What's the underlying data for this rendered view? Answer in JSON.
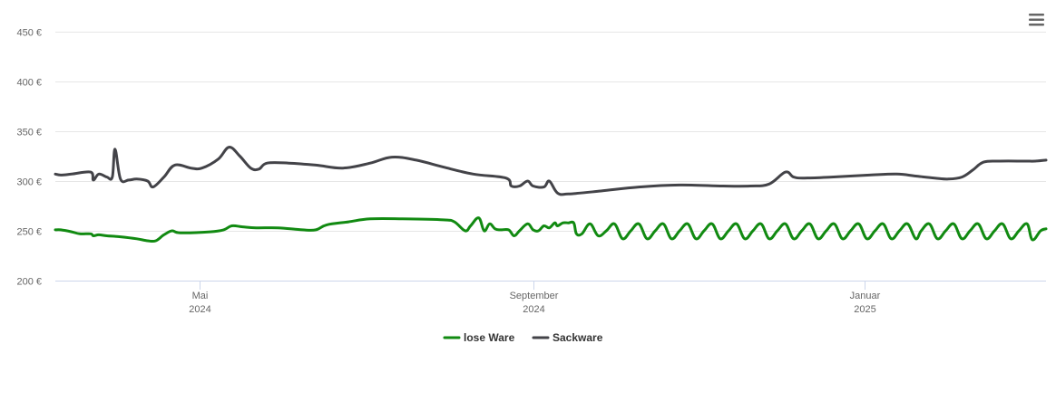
{
  "chart_data": {
    "type": "line",
    "title": "",
    "xlabel": "",
    "ylabel": "",
    "ylim": [
      200,
      450
    ],
    "y_ticks": [
      {
        "value": 200,
        "label": "200 €"
      },
      {
        "value": 250,
        "label": "250 €"
      },
      {
        "value": 300,
        "label": "300 €"
      },
      {
        "value": 350,
        "label": "350 €"
      },
      {
        "value": 400,
        "label": "400 €"
      },
      {
        "value": 450,
        "label": "450 €"
      }
    ],
    "x_range": [
      "2024-03-09",
      "2025-03-09"
    ],
    "x_ticks": [
      {
        "date": "2024-05-01",
        "month": "Mai",
        "year": "2024"
      },
      {
        "date": "2024-09-01",
        "month": "September",
        "year": "2024"
      },
      {
        "date": "2025-01-01",
        "month": "Januar",
        "year": "2025"
      }
    ],
    "grid": true,
    "legend_position": "bottom-center",
    "series": [
      {
        "name": "lose Ware",
        "color": "#118a11",
        "points": [
          [
            "2024-03-09",
            251
          ],
          [
            "2024-03-11",
            251
          ],
          [
            "2024-03-15",
            249
          ],
          [
            "2024-03-18",
            247
          ],
          [
            "2024-03-22",
            247
          ],
          [
            "2024-03-23",
            245
          ],
          [
            "2024-03-25",
            246
          ],
          [
            "2024-03-28",
            245
          ],
          [
            "2024-04-02",
            244
          ],
          [
            "2024-04-08",
            242
          ],
          [
            "2024-04-12",
            240
          ],
          [
            "2024-04-15",
            240
          ],
          [
            "2024-04-18",
            246
          ],
          [
            "2024-04-21",
            250
          ],
          [
            "2024-04-24",
            248
          ],
          [
            "2024-05-05",
            249
          ],
          [
            "2024-05-10",
            251
          ],
          [
            "2024-05-13",
            255
          ],
          [
            "2024-05-17",
            254
          ],
          [
            "2024-05-22",
            253
          ],
          [
            "2024-05-30",
            253
          ],
          [
            "2024-06-08",
            251
          ],
          [
            "2024-06-13",
            251
          ],
          [
            "2024-06-17",
            256
          ],
          [
            "2024-06-25",
            259
          ],
          [
            "2024-07-03",
            262
          ],
          [
            "2024-07-15",
            262
          ],
          [
            "2024-07-30",
            261
          ],
          [
            "2024-08-03",
            259
          ],
          [
            "2024-08-07",
            250
          ],
          [
            "2024-08-09",
            255
          ],
          [
            "2024-08-12",
            263
          ],
          [
            "2024-08-14",
            250
          ],
          [
            "2024-08-16",
            257
          ],
          [
            "2024-08-18",
            252
          ],
          [
            "2024-08-20",
            251
          ],
          [
            "2024-08-23",
            251
          ],
          [
            "2024-08-25",
            245
          ],
          [
            "2024-08-27",
            250
          ],
          [
            "2024-08-30",
            257
          ],
          [
            "2024-09-01",
            251
          ],
          [
            "2024-09-03",
            250
          ],
          [
            "2024-09-05",
            255
          ],
          [
            "2024-09-07",
            253
          ],
          [
            "2024-09-09",
            258
          ],
          [
            "2024-09-10",
            255
          ],
          [
            "2024-09-12",
            258
          ],
          [
            "2024-09-14",
            258
          ],
          [
            "2024-09-16",
            258
          ],
          [
            "2024-09-17",
            247
          ],
          [
            "2024-09-19",
            247
          ],
          [
            "2024-09-22",
            257
          ],
          [
            "2024-09-25",
            245
          ],
          [
            "2024-09-28",
            250
          ],
          [
            "2024-10-01",
            257
          ],
          [
            "2024-10-04",
            242
          ],
          [
            "2024-10-07",
            250
          ],
          [
            "2024-10-10",
            257
          ],
          [
            "2024-10-13",
            242
          ],
          [
            "2024-10-16",
            250
          ],
          [
            "2024-10-19",
            257
          ],
          [
            "2024-10-22",
            242
          ],
          [
            "2024-10-25",
            250
          ],
          [
            "2024-10-28",
            257
          ],
          [
            "2024-10-31",
            242
          ],
          [
            "2024-11-03",
            250
          ],
          [
            "2024-11-06",
            257
          ],
          [
            "2024-11-09",
            242
          ],
          [
            "2024-11-12",
            250
          ],
          [
            "2024-11-15",
            257
          ],
          [
            "2024-11-18",
            242
          ],
          [
            "2024-11-21",
            250
          ],
          [
            "2024-11-24",
            257
          ],
          [
            "2024-11-27",
            242
          ],
          [
            "2024-11-30",
            250
          ],
          [
            "2024-12-03",
            257
          ],
          [
            "2024-12-06",
            242
          ],
          [
            "2024-12-09",
            250
          ],
          [
            "2024-12-12",
            257
          ],
          [
            "2024-12-15",
            242
          ],
          [
            "2024-12-18",
            250
          ],
          [
            "2024-12-21",
            257
          ],
          [
            "2024-12-24",
            242
          ],
          [
            "2024-12-27",
            250
          ],
          [
            "2024-12-30",
            257
          ],
          [
            "2025-01-02",
            242
          ],
          [
            "2025-01-05",
            250
          ],
          [
            "2025-01-08",
            257
          ],
          [
            "2025-01-11",
            242
          ],
          [
            "2025-01-14",
            250
          ],
          [
            "2025-01-17",
            257
          ],
          [
            "2025-01-20",
            242
          ],
          [
            "2025-01-22",
            250
          ],
          [
            "2025-01-25",
            257
          ],
          [
            "2025-01-28",
            242
          ],
          [
            "2025-01-31",
            250
          ],
          [
            "2025-02-03",
            257
          ],
          [
            "2025-02-06",
            242
          ],
          [
            "2025-02-09",
            250
          ],
          [
            "2025-02-12",
            257
          ],
          [
            "2025-02-15",
            242
          ],
          [
            "2025-02-18",
            250
          ],
          [
            "2025-02-21",
            257
          ],
          [
            "2025-02-24",
            242
          ],
          [
            "2025-02-27",
            250
          ],
          [
            "2025-03-02",
            257
          ],
          [
            "2025-03-04",
            241
          ],
          [
            "2025-03-07",
            250
          ],
          [
            "2025-03-09",
            252
          ]
        ]
      },
      {
        "name": "Sackware",
        "color": "#434348",
        "points": [
          [
            "2024-03-09",
            307
          ],
          [
            "2024-03-11",
            306
          ],
          [
            "2024-03-15",
            307
          ],
          [
            "2024-03-22",
            309
          ],
          [
            "2024-03-23",
            301
          ],
          [
            "2024-03-25",
            307
          ],
          [
            "2024-03-28",
            304
          ],
          [
            "2024-03-30",
            304
          ],
          [
            "2024-03-31",
            332
          ],
          [
            "2024-04-02",
            302
          ],
          [
            "2024-04-05",
            301
          ],
          [
            "2024-04-08",
            302
          ],
          [
            "2024-04-12",
            300
          ],
          [
            "2024-04-14",
            294
          ],
          [
            "2024-04-18",
            304
          ],
          [
            "2024-04-22",
            316
          ],
          [
            "2024-04-28",
            313
          ],
          [
            "2024-05-02",
            313
          ],
          [
            "2024-05-08",
            322
          ],
          [
            "2024-05-12",
            334
          ],
          [
            "2024-05-16",
            325
          ],
          [
            "2024-05-20",
            313
          ],
          [
            "2024-05-23",
            312
          ],
          [
            "2024-05-26",
            318
          ],
          [
            "2024-06-03",
            318
          ],
          [
            "2024-06-13",
            316
          ],
          [
            "2024-06-23",
            313
          ],
          [
            "2024-07-03",
            318
          ],
          [
            "2024-07-11",
            324
          ],
          [
            "2024-07-20",
            321
          ],
          [
            "2024-07-30",
            314
          ],
          [
            "2024-08-10",
            307
          ],
          [
            "2024-08-22",
            303
          ],
          [
            "2024-08-24",
            295
          ],
          [
            "2024-08-27",
            295
          ],
          [
            "2024-08-30",
            300
          ],
          [
            "2024-09-01",
            295
          ],
          [
            "2024-09-05",
            294
          ],
          [
            "2024-09-07",
            300
          ],
          [
            "2024-09-10",
            288
          ],
          [
            "2024-09-14",
            287
          ],
          [
            "2024-09-26",
            290
          ],
          [
            "2024-10-10",
            294
          ],
          [
            "2024-10-25",
            296
          ],
          [
            "2024-11-10",
            295
          ],
          [
            "2024-11-20",
            295
          ],
          [
            "2024-11-27",
            297
          ],
          [
            "2024-12-03",
            309
          ],
          [
            "2024-12-06",
            304
          ],
          [
            "2024-12-10",
            303
          ],
          [
            "2024-12-20",
            304
          ],
          [
            "2025-01-03",
            306
          ],
          [
            "2025-01-13",
            307
          ],
          [
            "2025-01-20",
            305
          ],
          [
            "2025-01-27",
            303
          ],
          [
            "2025-02-01",
            302
          ],
          [
            "2025-02-06",
            304
          ],
          [
            "2025-02-10",
            311
          ],
          [
            "2025-02-14",
            319
          ],
          [
            "2025-02-20",
            320
          ],
          [
            "2025-03-01",
            320
          ],
          [
            "2025-03-05",
            320
          ],
          [
            "2025-03-09",
            321
          ]
        ]
      }
    ]
  },
  "legend": {
    "items": [
      {
        "label": "lose Ware",
        "color": "#118a11"
      },
      {
        "label": "Sackware",
        "color": "#434348"
      }
    ]
  },
  "menu": {
    "icon": "hamburger-menu-icon"
  }
}
